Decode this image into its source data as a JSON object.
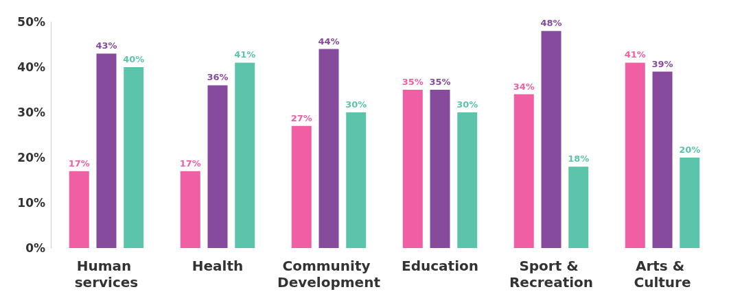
{
  "chart_data": {
    "type": "bar",
    "categories": [
      "Human services",
      "Health",
      "Community Development",
      "Education",
      "Sport & Recreation",
      "Arts & Culture"
    ],
    "series": [
      {
        "color": "#f05fa3",
        "values": [
          17,
          17,
          27,
          35,
          34,
          41
        ],
        "value_labels": [
          "17%",
          "17%",
          "27%",
          "35%",
          "34%",
          "41%"
        ]
      },
      {
        "color": "#874b9e",
        "values": [
          43,
          36,
          44,
          35,
          48,
          39
        ],
        "value_labels": [
          "43%",
          "36%",
          "44%",
          "35%",
          "48%",
          "39%"
        ]
      },
      {
        "color": "#5bc4aa",
        "values": [
          40,
          41,
          30,
          30,
          18,
          20
        ],
        "value_labels": [
          "40%",
          "41%",
          "30%",
          "30%",
          "18%",
          "20%"
        ]
      }
    ],
    "ylim": [
      0,
      50
    ],
    "yticks": [
      {
        "value": 0,
        "label": "0%"
      },
      {
        "value": 10,
        "label": "10%"
      },
      {
        "value": 20,
        "label": "20%"
      },
      {
        "value": 30,
        "label": "30%"
      },
      {
        "value": 40,
        "label": "40%"
      },
      {
        "value": 50,
        "label": "50%"
      }
    ],
    "grid": false
  }
}
